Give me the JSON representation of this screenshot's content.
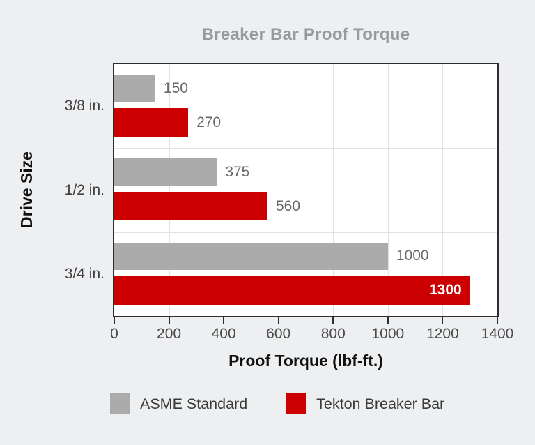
{
  "page": {
    "background": "#edeff1"
  },
  "chart_data": {
    "type": "bar",
    "orientation": "horizontal",
    "title": "Breaker Bar Proof Torque",
    "xlabel": "Proof Torque (lbf-ft.)",
    "ylabel": "Drive Size",
    "categories": [
      "3/8 in.",
      "1/2 in.",
      "3/4 in."
    ],
    "series": [
      {
        "name": "ASME Standard",
        "color": "#ababab",
        "values": [
          150,
          375,
          1000
        ]
      },
      {
        "name": "Tekton Breaker Bar",
        "color": "#cc0000",
        "values": [
          270,
          560,
          1300
        ]
      }
    ],
    "xlim": [
      0,
      1400
    ],
    "x_ticks": [
      0,
      200,
      400,
      600,
      800,
      1000,
      1200,
      1400
    ],
    "grid": true,
    "legend_position": "bottom",
    "styles": {
      "title_color": "#98999b",
      "plot_bg": "#ffffff",
      "plot_border": "#2e2e2e",
      "gridline": "#e2e2e2",
      "bar_label_color": "#6a6a6a",
      "inside_label_color": "#ffffff",
      "category_color": "#414141",
      "tick_color": "#4a4a4a",
      "tick_mark_color": "#2e2e2e",
      "axis_label_color": "#111111",
      "legend_text_color": "#3a3a3a"
    }
  }
}
